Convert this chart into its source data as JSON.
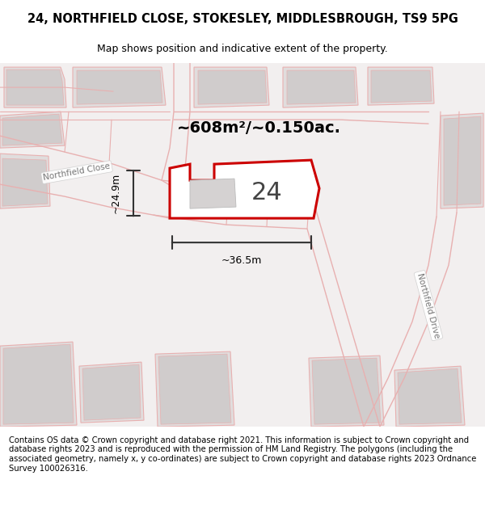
{
  "title": "24, NORTHFIELD CLOSE, STOKESLEY, MIDDLESBROUGH, TS9 5PG",
  "subtitle": "Map shows position and indicative extent of the property.",
  "area_label": "~608m²/~0.150ac.",
  "width_label": "~36.5m",
  "height_label": "~24.9m",
  "plot_number": "24",
  "footer": "Contains OS data © Crown copyright and database right 2021. This information is subject to Crown copyright and database rights 2023 and is reproduced with the permission of HM Land Registry. The polygons (including the associated geometry, namely x, y co-ordinates) are subject to Crown copyright and database rights 2023 Ordnance Survey 100026316.",
  "map_bg": "#f2efef",
  "road_color": "#e8b0b0",
  "building_fill": "#e0dddd",
  "building_fill2": "#d0cccc",
  "highlight_color": "#cc0000",
  "road_label": "Northfield Close",
  "road_label2": "Northfield Drive",
  "title_fontsize": 10.5,
  "subtitle_fontsize": 9,
  "footer_fontsize": 7.2,
  "plot_label_fontsize": 22,
  "area_fontsize": 14,
  "dim_fontsize": 9
}
